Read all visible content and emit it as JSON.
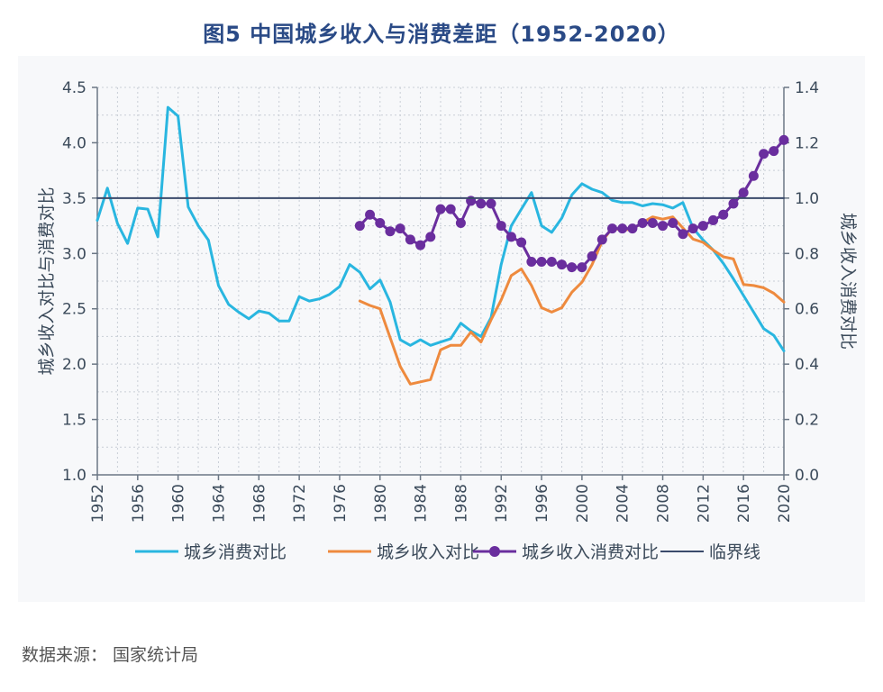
{
  "title": "图5  中国城乡收入与消费差距（1952-2020）",
  "source": "数据来源：  国家统计局",
  "chart_data": {
    "type": "line",
    "title": "图5  中国城乡收入与消费差距（1952-2020）",
    "xlabel": "",
    "ylabel_left": "城乡收入对比与消费对比",
    "ylabel_right": "城乡收入消费对比",
    "xlim": [
      1952,
      2020
    ],
    "ylim_left": [
      1.0,
      4.5
    ],
    "ylim_right": [
      0.0,
      1.4
    ],
    "x_ticks": [
      "1952",
      "1956",
      "1960",
      "1964",
      "1968",
      "1972",
      "1976",
      "1980",
      "1984",
      "1988",
      "1992",
      "1996",
      "2000",
      "2004",
      "2008",
      "2012",
      "2016",
      "2020"
    ],
    "y_ticks_left": [
      "1.0",
      "1.5",
      "2.0",
      "2.5",
      "3.0",
      "3.5",
      "4.0",
      "4.5"
    ],
    "y_ticks_right": [
      "0.0",
      "0.2",
      "0.4",
      "0.6",
      "0.8",
      "1.0",
      "1.2",
      "1.4"
    ],
    "grid": true,
    "legend_position": "bottom",
    "series": [
      {
        "name": "城乡消费对比",
        "axis": "left",
        "color": "#29b6e0",
        "marker": false,
        "x": [
          1952,
          1953,
          1954,
          1955,
          1956,
          1957,
          1958,
          1959,
          1960,
          1961,
          1962,
          1963,
          1964,
          1965,
          1966,
          1967,
          1968,
          1969,
          1970,
          1971,
          1972,
          1973,
          1974,
          1975,
          1976,
          1977,
          1978,
          1979,
          1980,
          1981,
          1982,
          1983,
          1984,
          1985,
          1986,
          1987,
          1988,
          1989,
          1990,
          1991,
          1992,
          1993,
          1994,
          1995,
          1996,
          1997,
          1998,
          1999,
          2000,
          2001,
          2002,
          2003,
          2004,
          2005,
          2006,
          2007,
          2008,
          2009,
          2010,
          2011,
          2012,
          2013,
          2014,
          2015,
          2016,
          2017,
          2018,
          2019,
          2020
        ],
        "y": [
          3.3,
          3.59,
          3.27,
          3.09,
          3.41,
          3.4,
          3.15,
          4.32,
          4.24,
          3.42,
          3.25,
          3.12,
          2.71,
          2.54,
          2.47,
          2.41,
          2.48,
          2.46,
          2.39,
          2.39,
          2.61,
          2.57,
          2.59,
          2.63,
          2.7,
          2.9,
          2.83,
          2.68,
          2.76,
          2.56,
          2.22,
          2.17,
          2.22,
          2.17,
          2.2,
          2.23,
          2.37,
          2.3,
          2.25,
          2.42,
          2.9,
          3.25,
          3.4,
          3.55,
          3.25,
          3.19,
          3.32,
          3.53,
          3.63,
          3.58,
          3.55,
          3.48,
          3.46,
          3.46,
          3.43,
          3.45,
          3.44,
          3.41,
          3.46,
          3.23,
          3.12,
          3.03,
          2.91,
          2.77,
          2.62,
          2.47,
          2.32,
          2.26,
          2.12
        ]
      },
      {
        "name": "城乡收入对比",
        "axis": "left",
        "color": "#ee8a3e",
        "marker": false,
        "x": [
          1978,
          1979,
          1980,
          1981,
          1982,
          1983,
          1984,
          1985,
          1986,
          1987,
          1988,
          1989,
          1990,
          1991,
          1992,
          1993,
          1994,
          1995,
          1996,
          1997,
          1998,
          1999,
          2000,
          2001,
          2002,
          2003,
          2004,
          2005,
          2006,
          2007,
          2008,
          2009,
          2010,
          2011,
          2012,
          2013,
          2014,
          2015,
          2016,
          2017,
          2018,
          2019,
          2020
        ],
        "y": [
          2.57,
          2.53,
          2.5,
          2.24,
          1.98,
          1.82,
          1.84,
          1.86,
          2.13,
          2.17,
          2.17,
          2.29,
          2.2,
          2.4,
          2.58,
          2.8,
          2.86,
          2.71,
          2.51,
          2.47,
          2.51,
          2.65,
          2.74,
          2.9,
          3.11,
          3.23,
          3.21,
          3.22,
          3.28,
          3.33,
          3.31,
          3.33,
          3.23,
          3.13,
          3.1,
          3.03,
          2.97,
          2.95,
          2.72,
          2.71,
          2.69,
          2.64,
          2.56
        ]
      },
      {
        "name": "城乡收入消费对比",
        "axis": "right",
        "color": "#6a2e9e",
        "marker": true,
        "x": [
          1978,
          1979,
          1980,
          1981,
          1982,
          1983,
          1984,
          1985,
          1986,
          1987,
          1988,
          1989,
          1990,
          1991,
          1992,
          1993,
          1994,
          1995,
          1996,
          1997,
          1998,
          1999,
          2000,
          2001,
          2002,
          2003,
          2004,
          2005,
          2006,
          2007,
          2008,
          2009,
          2010,
          2011,
          2012,
          2013,
          2014,
          2015,
          2016,
          2017,
          2018,
          2019,
          2020
        ],
        "y": [
          0.9,
          0.94,
          0.91,
          0.88,
          0.89,
          0.85,
          0.83,
          0.86,
          0.96,
          0.96,
          0.91,
          0.99,
          0.98,
          0.98,
          0.9,
          0.86,
          0.84,
          0.77,
          0.77,
          0.77,
          0.76,
          0.75,
          0.75,
          0.79,
          0.85,
          0.89,
          0.89,
          0.89,
          0.91,
          0.91,
          0.9,
          0.91,
          0.87,
          0.89,
          0.9,
          0.92,
          0.94,
          0.98,
          1.02,
          1.08,
          1.16,
          1.17,
          1.21
        ]
      },
      {
        "name": "临界线",
        "axis": "right",
        "color": "#3a4a6b",
        "marker": false,
        "x": [
          1952,
          2020
        ],
        "y": [
          1.0,
          1.0
        ]
      }
    ]
  }
}
